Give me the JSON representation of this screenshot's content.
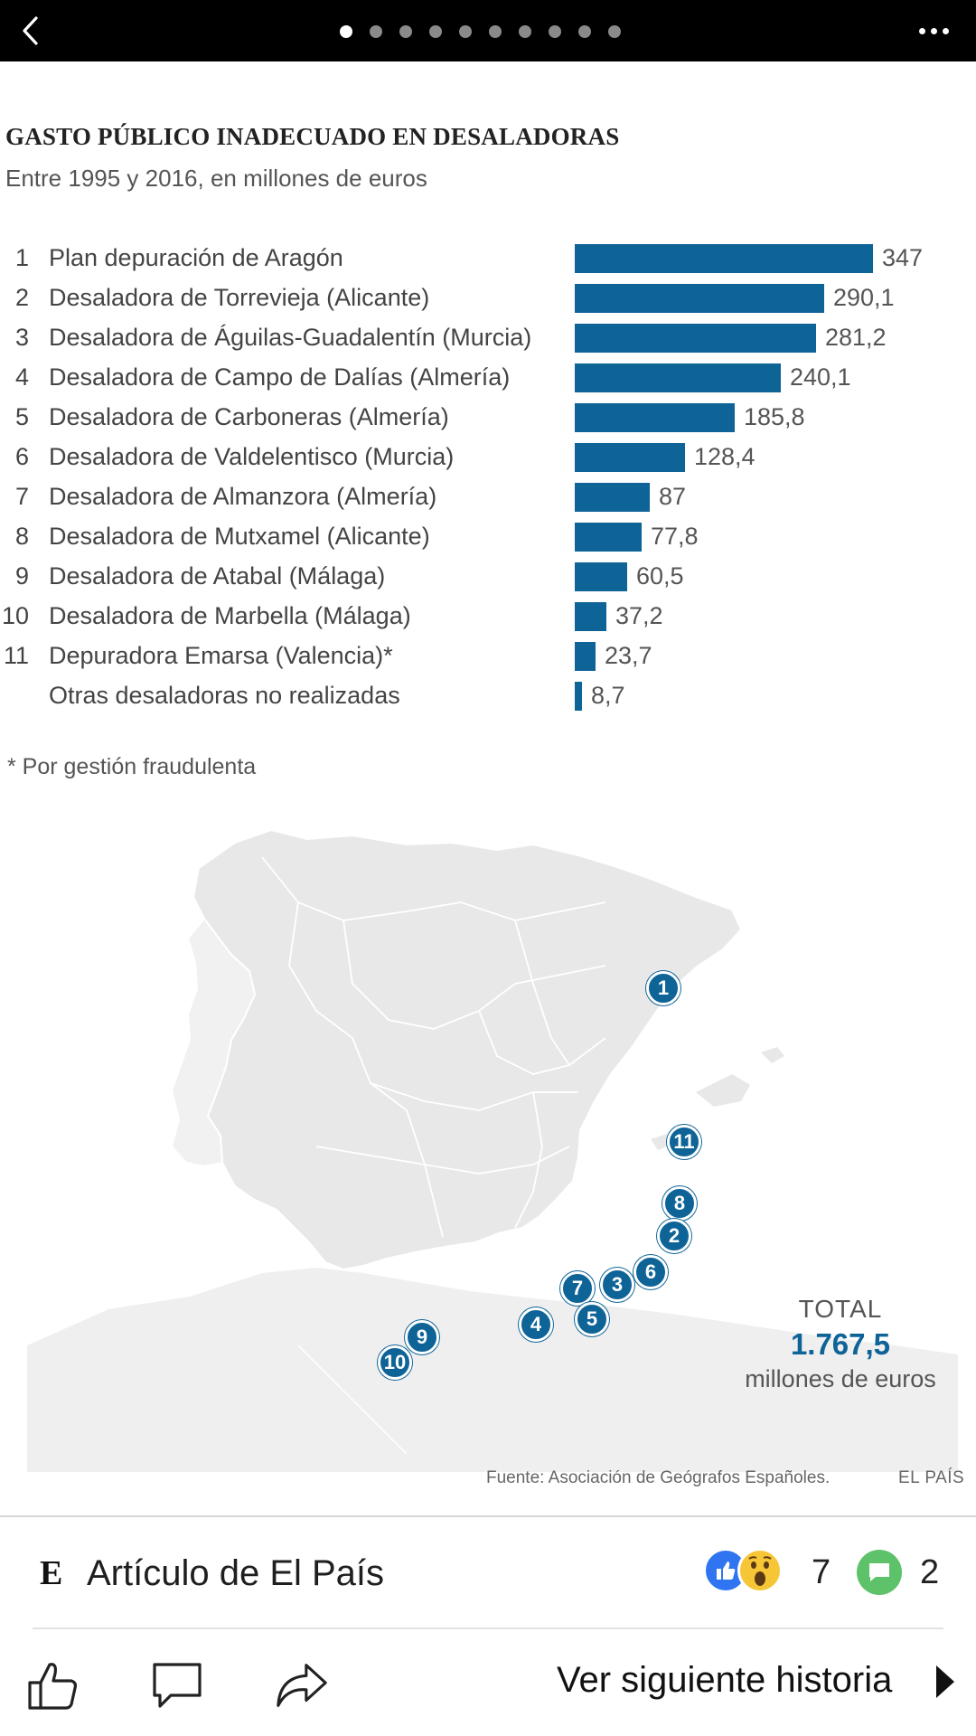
{
  "topbar": {
    "pages_total": 10,
    "active_page": 1
  },
  "graphic": {
    "title": "GASTO PÚBLICO INADECUADO EN DESALADORAS",
    "subtitle": "Entre 1995 y 2016, en millones de euros",
    "footnote": "* Por gestión fraudulenta",
    "total": {
      "label": "TOTAL",
      "value": "1.767,5",
      "units": "millones de euros"
    },
    "source": "Fuente: Asociación de Geógrafos Españoles.",
    "brand": "EL PAÍS",
    "accent_color": "#0e6397"
  },
  "chart_data": {
    "type": "bar",
    "orientation": "horizontal",
    "title": "GASTO PÚBLICO INADECUADO EN DESALADORAS",
    "subtitle": "Entre 1995 y 2016, en millones de euros",
    "ranks": [
      "1",
      "2",
      "3",
      "4",
      "5",
      "6",
      "7",
      "8",
      "9",
      "10",
      "11",
      ""
    ],
    "categories": [
      "Plan depuración de Aragón",
      "Desaladora de Torrevieja (Alicante)",
      "Desaladora de Águilas-Guadalentín (Murcia)",
      "Desaladora de Campo de Dalías (Almería)",
      "Desaladora de Carboneras (Almería)",
      "Desaladora de Valdelentisco (Murcia)",
      "Desaladora de Almanzora (Almería)",
      "Desaladora de Mutxamel (Alicante)",
      "Desaladora de Atabal (Málaga)",
      "Desaladora de Marbella (Málaga)",
      "Depuradora Emarsa (Valencia)*",
      "Otras desaladoras no realizadas"
    ],
    "values": [
      347,
      290.1,
      281.2,
      240.1,
      185.8,
      128.4,
      87,
      77.8,
      60.5,
      37.2,
      23.7,
      8.7
    ],
    "value_labels": [
      "347",
      "290,1",
      "281,2",
      "240,1",
      "185,8",
      "128,4",
      "87",
      "77,8",
      "60,5",
      "37,2",
      "23,7",
      "8,7"
    ],
    "xlim": [
      0,
      347
    ],
    "color": "#0e6397"
  },
  "map": {
    "markers": [
      "1",
      "11",
      "8",
      "2",
      "6",
      "3",
      "7",
      "5",
      "4",
      "9",
      "10"
    ]
  },
  "footer": {
    "logo_letter": "E",
    "article_label": "Artículo de El País",
    "reaction_count": "7",
    "comment_count": "2",
    "next_story_label": "Ver siguiente historia"
  }
}
